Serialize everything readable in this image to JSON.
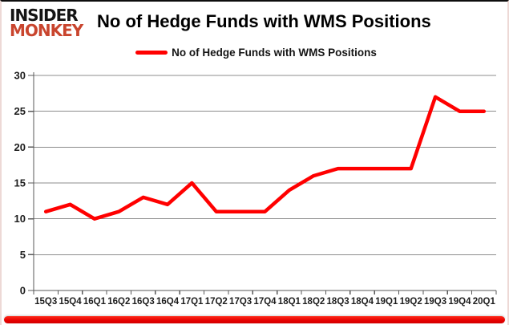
{
  "logo": {
    "line1": "INSIDER",
    "line2": "MONKEY"
  },
  "header": {
    "title": "No of Hedge Funds with WMS Positions"
  },
  "legend": {
    "label": "No of Hedge Funds with WMS Positions",
    "swatch_color": "#ff0000"
  },
  "colors": {
    "line": "#ff0000",
    "logo_monkey": "#c9452e",
    "logo_insider": "#141414",
    "gridline": "#8c8c8c",
    "axis": "#595959",
    "tick_text": "#1c1c1c",
    "bottom_bar": "#e60000"
  },
  "chart_data": {
    "type": "line",
    "title": "No of Hedge Funds with WMS Positions",
    "categories": [
      "15Q3",
      "15Q4",
      "16Q1",
      "16Q2",
      "16Q3",
      "16Q4",
      "17Q1",
      "17Q2",
      "17Q3",
      "17Q4",
      "18Q1",
      "18Q2",
      "18Q3",
      "18Q4",
      "19Q1",
      "19Q2",
      "19Q3",
      "19Q4",
      "20Q1"
    ],
    "series": [
      {
        "name": "No of Hedge Funds with WMS Positions",
        "color": "#ff0000",
        "values": [
          11,
          12,
          10,
          11,
          13,
          12,
          15,
          11,
          11,
          11,
          14,
          16,
          17,
          17,
          17,
          17,
          27,
          25,
          25
        ]
      }
    ],
    "xlabel": "",
    "ylabel": "",
    "ylim": [
      0,
      30
    ],
    "yticks": [
      0,
      5,
      10,
      15,
      20,
      25,
      30
    ],
    "grid": "horizontal",
    "legend_position": "top-center"
  }
}
